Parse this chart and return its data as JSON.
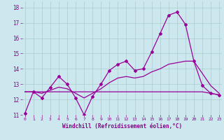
{
  "background_color": "#cce8ee",
  "grid_color": "#aacccc",
  "line_color": "#990099",
  "marker": "D",
  "markersize": 2.0,
  "linewidth": 0.9,
  "xlabel": "Windchill (Refroidissement éolien,°C)",
  "xlabel_color": "#880088",
  "tick_color": "#880088",
  "ylim": [
    11,
    18.4
  ],
  "xlim": [
    -0.3,
    23.3
  ],
  "yticks": [
    11,
    12,
    13,
    14,
    15,
    16,
    17,
    18
  ],
  "xticks": [
    0,
    1,
    2,
    3,
    4,
    5,
    6,
    7,
    8,
    9,
    10,
    11,
    12,
    13,
    14,
    15,
    16,
    17,
    18,
    19,
    20,
    21,
    22,
    23
  ],
  "line1_x": [
    0,
    1,
    2,
    3,
    4,
    5,
    6,
    7,
    8,
    9,
    10,
    11,
    12,
    13,
    14,
    15,
    16,
    17,
    18,
    19,
    20,
    21,
    22,
    23
  ],
  "line1_y": [
    11.1,
    12.5,
    12.1,
    12.8,
    13.5,
    13.0,
    12.1,
    11.0,
    12.2,
    13.0,
    13.9,
    14.3,
    14.5,
    13.9,
    14.0,
    15.1,
    16.3,
    17.5,
    17.7,
    16.9,
    14.5,
    12.9,
    12.4,
    12.3
  ],
  "line2_x": [
    0,
    1,
    2,
    3,
    4,
    5,
    6,
    7,
    8,
    9,
    10,
    11,
    12,
    13,
    14,
    15,
    16,
    17,
    18,
    19,
    20,
    21,
    22,
    23
  ],
  "line2_y": [
    12.5,
    12.5,
    12.5,
    12.5,
    12.5,
    12.5,
    12.5,
    12.5,
    12.5,
    12.5,
    12.5,
    12.5,
    12.5,
    12.5,
    12.5,
    12.5,
    12.5,
    12.5,
    12.5,
    12.5,
    12.5,
    12.5,
    12.4,
    12.3
  ],
  "line3_x": [
    0,
    1,
    2,
    3,
    4,
    5,
    6,
    7,
    8,
    9,
    10,
    11,
    12,
    13,
    14,
    15,
    16,
    17,
    18,
    19,
    20,
    21,
    22,
    23
  ],
  "line3_y": [
    12.5,
    12.5,
    12.4,
    12.6,
    12.8,
    12.7,
    12.4,
    12.1,
    12.4,
    12.7,
    13.1,
    13.4,
    13.5,
    13.4,
    13.5,
    13.8,
    14.0,
    14.3,
    14.4,
    14.5,
    14.5,
    13.7,
    12.9,
    12.4
  ]
}
